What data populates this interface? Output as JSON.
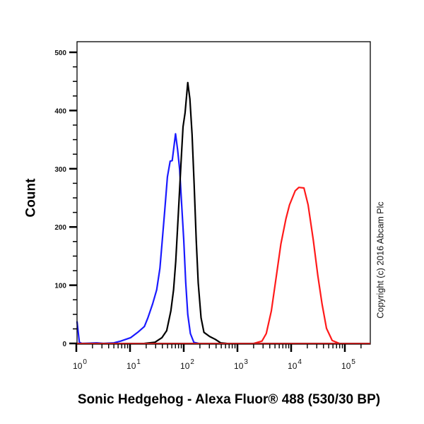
{
  "chart_data": {
    "type": "line",
    "title": "",
    "xlabel": "Sonic Hedgehog - Alexa Fluor® 488 (530/30 BP)",
    "ylabel": "Count",
    "xscale": "log",
    "xlim": [
      1,
      250000
    ],
    "ylim": [
      0,
      520
    ],
    "yticks": [
      0,
      100,
      200,
      300,
      400,
      500
    ],
    "xticks": [
      {
        "base": "10",
        "exp": "0",
        "value": 1
      },
      {
        "base": "10",
        "exp": "1",
        "value": 10
      },
      {
        "base": "10",
        "exp": "2",
        "value": 100
      },
      {
        "base": "10",
        "exp": "3",
        "value": 1000
      },
      {
        "base": "10",
        "exp": "4",
        "value": 10000
      },
      {
        "base": "10",
        "exp": "5",
        "value": 100000
      }
    ],
    "grid": false,
    "legend": null,
    "annotation": "Copyright (c) 2016 Abcam Plc",
    "series": [
      {
        "name": "blue",
        "color": "#1a1aff",
        "points": [
          [
            1.03,
            38
          ],
          [
            1.14,
            2
          ],
          [
            1.27,
            0
          ],
          [
            2.4,
            1
          ],
          [
            3.2,
            0
          ],
          [
            5.0,
            1
          ],
          [
            6.7,
            4
          ],
          [
            10.3,
            10
          ],
          [
            13.9,
            19
          ],
          [
            18.5,
            29
          ],
          [
            21.5,
            44
          ],
          [
            26.4,
            68
          ],
          [
            31.3,
            92
          ],
          [
            36.0,
            129
          ],
          [
            39.3,
            171
          ],
          [
            44.2,
            228
          ],
          [
            49.7,
            286
          ],
          [
            55.9,
            313
          ],
          [
            61.0,
            314
          ],
          [
            70.4,
            360
          ],
          [
            76.9,
            333
          ],
          [
            84.0,
            299
          ],
          [
            91.7,
            238
          ],
          [
            100,
            178
          ],
          [
            109,
            105
          ],
          [
            119,
            50
          ],
          [
            133,
            17
          ],
          [
            154,
            2
          ],
          [
            189,
            0
          ]
        ]
      },
      {
        "name": "black",
        "color": "#000000",
        "points": [
          [
            18.5,
            0
          ],
          [
            29.0,
            2
          ],
          [
            39.3,
            10
          ],
          [
            48.2,
            22
          ],
          [
            57.6,
            56
          ],
          [
            64.7,
            92
          ],
          [
            71.0,
            141
          ],
          [
            79.7,
            226
          ],
          [
            89.1,
            311
          ],
          [
            97.0,
            372
          ],
          [
            106,
            396
          ],
          [
            119,
            448
          ],
          [
            130,
            420
          ],
          [
            143,
            359
          ],
          [
            156,
            274
          ],
          [
            171,
            177
          ],
          [
            186,
            104
          ],
          [
            210,
            44
          ],
          [
            238,
            19
          ],
          [
            303,
            12
          ],
          [
            386,
            7
          ],
          [
            487,
            1
          ],
          [
            630,
            0
          ]
        ]
      },
      {
        "name": "red",
        "color": "#ff1a1a",
        "points": [
          [
            2000,
            0
          ],
          [
            2860,
            4
          ],
          [
            3440,
            17
          ],
          [
            4280,
            56
          ],
          [
            5330,
            117
          ],
          [
            6440,
            171
          ],
          [
            8000,
            214
          ],
          [
            9320,
            238
          ],
          [
            11900,
            262
          ],
          [
            13900,
            268
          ],
          [
            17300,
            267
          ],
          [
            20700,
            238
          ],
          [
            25900,
            177
          ],
          [
            31300,
            117
          ],
          [
            37600,
            68
          ],
          [
            45500,
            26
          ],
          [
            58200,
            5
          ],
          [
            79300,
            0
          ]
        ]
      }
    ]
  }
}
